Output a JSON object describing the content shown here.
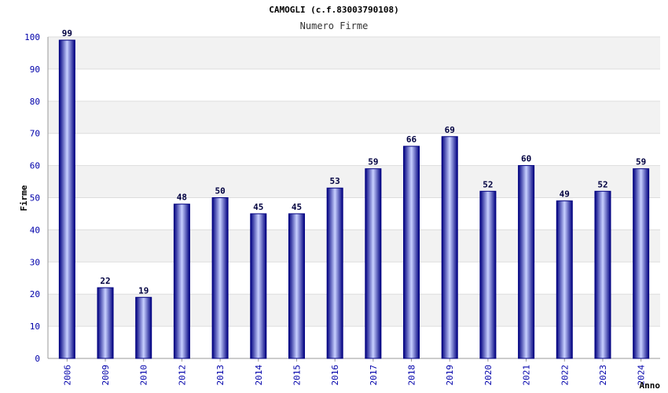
{
  "chart_data": {
    "type": "bar",
    "title": "CAMOGLI (c.f.83003790108)",
    "subtitle": "Numero Firme",
    "xlabel": "Anno",
    "ylabel": "Firme",
    "ylim": [
      0,
      100
    ],
    "yticks": [
      "0",
      "10",
      "20",
      "30",
      "40",
      "50",
      "60",
      "70",
      "80",
      "90",
      "100"
    ],
    "grid": true,
    "categories": [
      "2006",
      "2009",
      "2010",
      "2012",
      "2013",
      "2014",
      "2015",
      "2016",
      "2017",
      "2018",
      "2019",
      "2020",
      "2021",
      "2022",
      "2023",
      "2024"
    ],
    "values": [
      99,
      22,
      19,
      48,
      50,
      45,
      45,
      53,
      59,
      66,
      69,
      52,
      60,
      49,
      52,
      59
    ],
    "colors": {
      "bar_edge": "#000080",
      "bar_light": "#c8d0ff",
      "band": "#f2f2f2",
      "grid": "#dddddd",
      "tick": "#0000aa"
    }
  }
}
